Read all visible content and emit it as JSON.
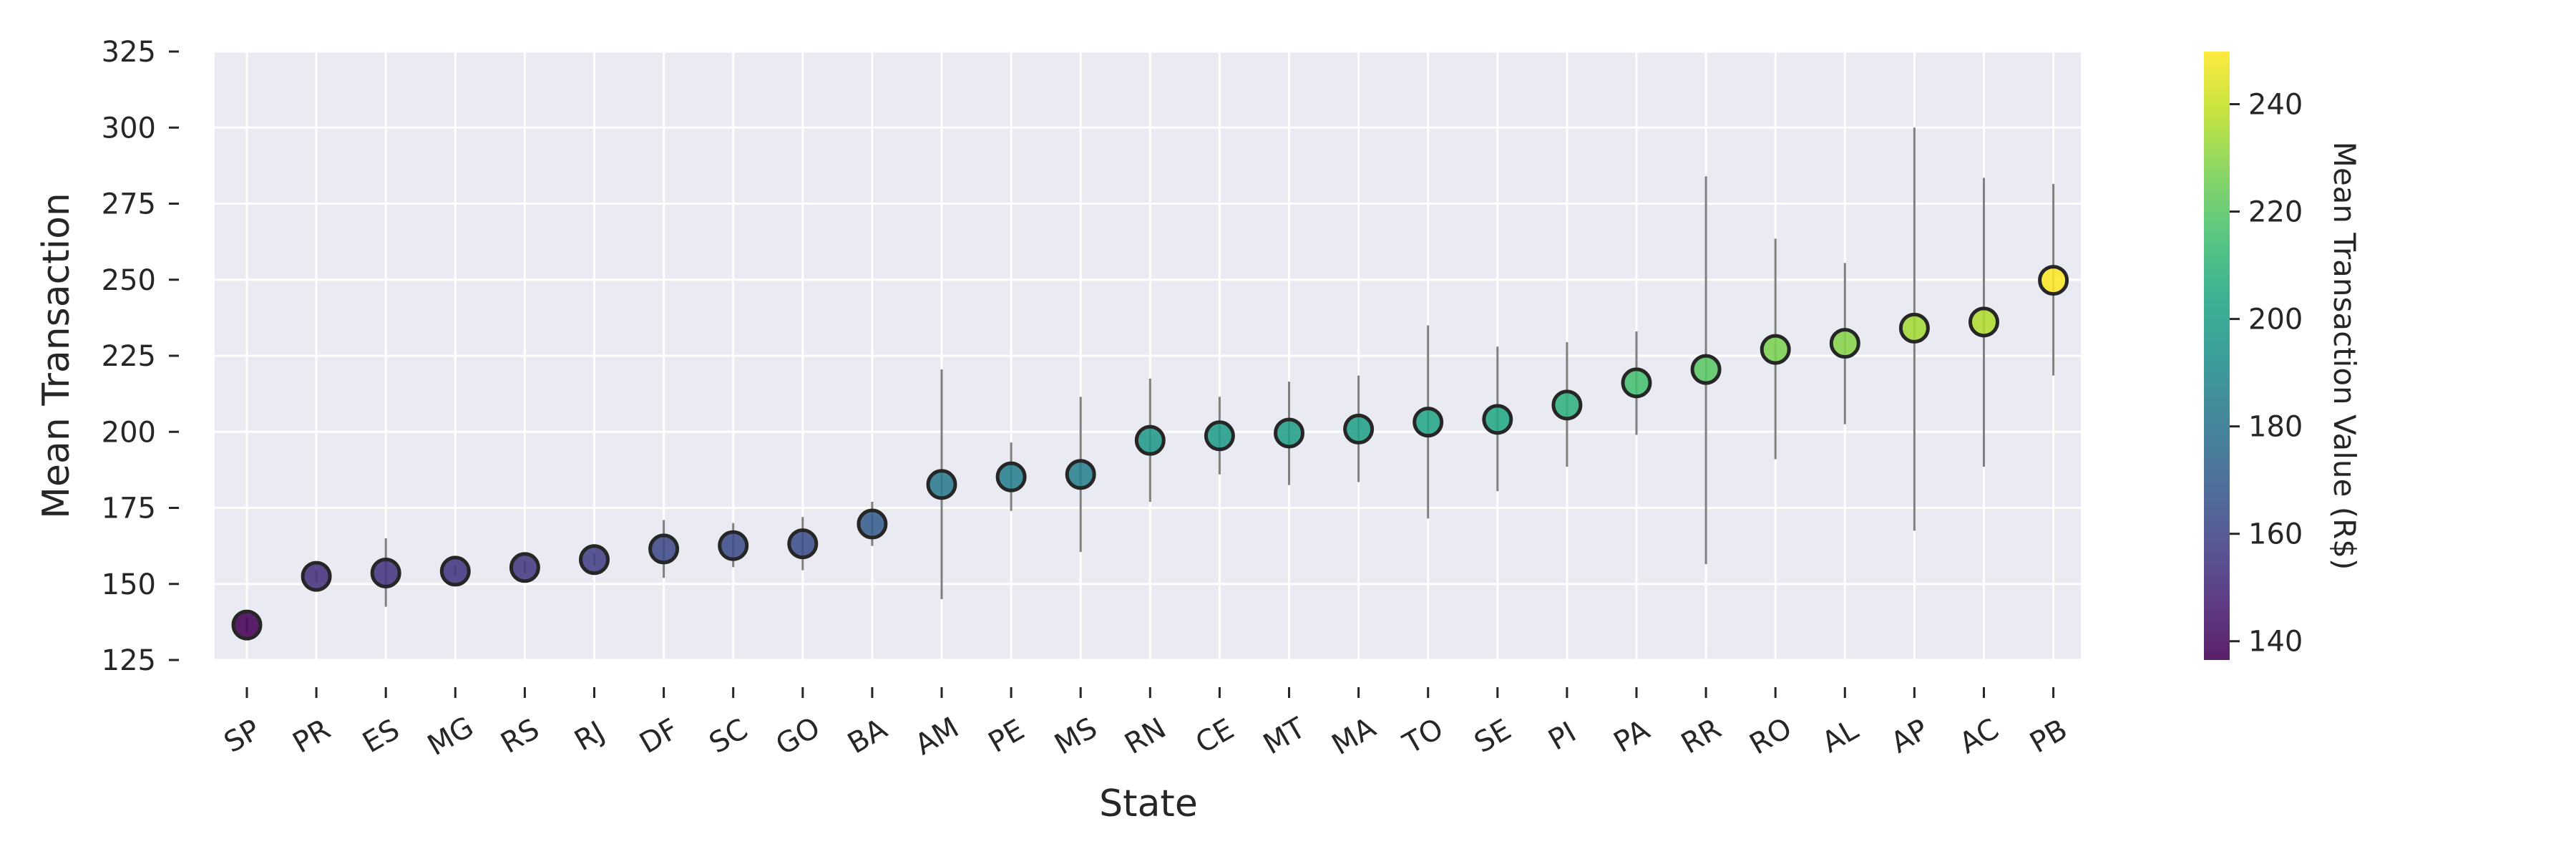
{
  "chart_data": {
    "type": "scatter",
    "title": "",
    "xlabel": "State",
    "ylabel": "Mean Transaction",
    "ylim": [
      125,
      325
    ],
    "yticks": [
      125,
      150,
      175,
      200,
      225,
      250,
      275,
      300,
      325
    ],
    "grid": true,
    "categories": [
      "SP",
      "PR",
      "ES",
      "MG",
      "RS",
      "RJ",
      "DF",
      "SC",
      "GO",
      "BA",
      "AM",
      "PE",
      "MS",
      "RN",
      "CE",
      "MT",
      "MA",
      "TO",
      "SE",
      "PI",
      "PA",
      "RR",
      "RO",
      "AL",
      "AP",
      "AC",
      "PB"
    ],
    "values": [
      136.5,
      152.5,
      153.6,
      154.2,
      155.4,
      158.0,
      161.5,
      162.6,
      163.2,
      169.7,
      182.7,
      185.2,
      186.0,
      197.2,
      198.7,
      199.6,
      200.9,
      203.2,
      204.1,
      208.8,
      216.1,
      220.5,
      227.1,
      229.1,
      234.1,
      236.1,
      249.8
    ],
    "error_low": [
      134.0,
      150.5,
      142.5,
      152.5,
      153.5,
      156.0,
      152.0,
      155.5,
      154.5,
      162.5,
      145.0,
      174.0,
      160.5,
      177.0,
      186.0,
      182.5,
      183.5,
      171.5,
      180.5,
      188.5,
      199.0,
      156.5,
      191.0,
      202.5,
      167.5,
      188.5,
      218.5
    ],
    "error_high": [
      139.0,
      154.5,
      165.0,
      156.0,
      157.5,
      160.0,
      171.0,
      170.0,
      172.0,
      177.0,
      220.5,
      196.5,
      211.5,
      217.5,
      211.5,
      216.5,
      218.5,
      235.0,
      228.0,
      229.5,
      233.0,
      284.0,
      263.5,
      255.5,
      300.0,
      283.5,
      281.5
    ],
    "colorbar": {
      "label": "Mean Transaction Value (R$)",
      "colormap": "viridis",
      "range": [
        136.5,
        249.8
      ],
      "ticks": [
        140,
        160,
        180,
        200,
        220,
        240
      ]
    }
  },
  "colors": {
    "plot_background": "#eaeaf2",
    "grid": "#ffffff",
    "errorbar": "#808080",
    "marker_edge": "#262626"
  }
}
